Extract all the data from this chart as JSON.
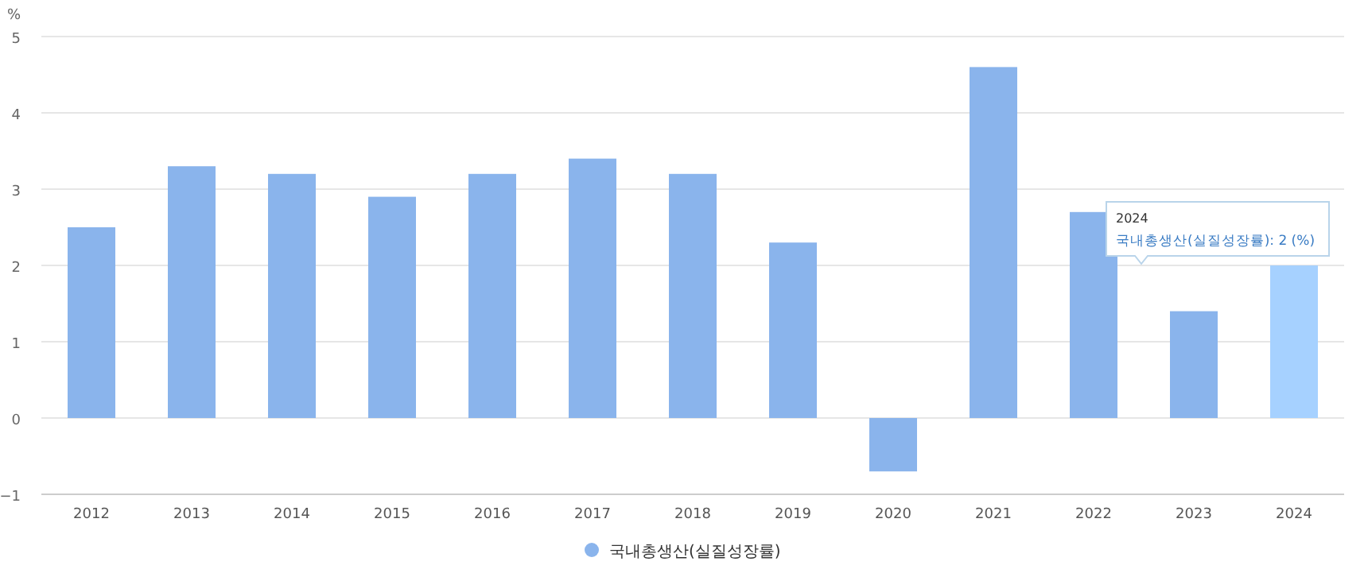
{
  "chart_data": {
    "type": "bar",
    "ylabel": "%",
    "categories": [
      "2012",
      "2013",
      "2014",
      "2015",
      "2016",
      "2017",
      "2018",
      "2019",
      "2020",
      "2021",
      "2022",
      "2023",
      "2024"
    ],
    "series": [
      {
        "name": "국내총생산(실질성장률)",
        "color": "#8ab4ec",
        "colors": [
          "#8ab4ec",
          "#8ab4ec",
          "#8ab4ec",
          "#8ab4ec",
          "#8ab4ec",
          "#8ab4ec",
          "#8ab4ec",
          "#8ab4ec",
          "#8ab4ec",
          "#8ab4ec",
          "#8ab4ec",
          "#8ab4ec",
          "#a6d1ff"
        ],
        "values": [
          2.5,
          3.3,
          3.2,
          2.9,
          3.2,
          3.4,
          3.2,
          2.3,
          -0.7,
          4.6,
          2.7,
          1.4,
          2.0
        ]
      }
    ],
    "ylim": [
      -1,
      5
    ],
    "yticks": [
      -1,
      0,
      1,
      2,
      3,
      4,
      5
    ],
    "grid": "y",
    "legend": "bottom",
    "annotations": [
      {
        "text": "2024\n국내총생산(실질성장률): 2 (%)",
        "x": "2024",
        "y": 2
      }
    ]
  }
}
